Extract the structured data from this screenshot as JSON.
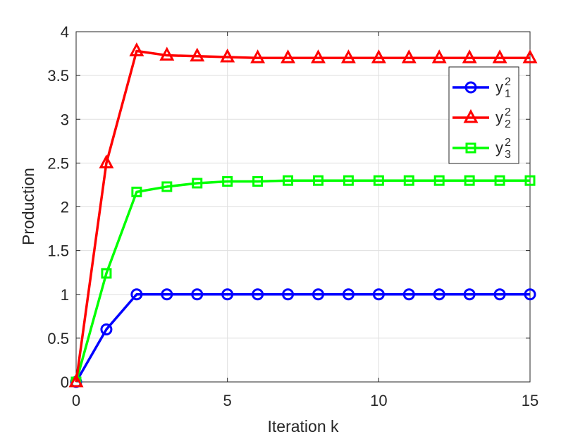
{
  "chart_data": {
    "type": "line",
    "title": "",
    "xlabel": "Iteration k",
    "ylabel": "Production",
    "xlim": [
      0,
      15
    ],
    "ylim": [
      0,
      4
    ],
    "grid": true,
    "legend_position": "top-right",
    "xticks": [
      0,
      5,
      10,
      15
    ],
    "xtick_labels": [
      "0",
      "5",
      "10",
      "15"
    ],
    "yticks": [
      0,
      0.5,
      1,
      1.5,
      2,
      2.5,
      3,
      3.5,
      4
    ],
    "ytick_labels": [
      "0",
      "0.5",
      "1",
      "1.5",
      "2",
      "2.5",
      "3",
      "3.5",
      "4"
    ],
    "x": [
      0,
      1,
      2,
      3,
      4,
      5,
      6,
      7,
      8,
      9,
      10,
      11,
      12,
      13,
      14,
      15
    ],
    "series": [
      {
        "name": "y",
        "name_sup": "2",
        "name_sub": "1",
        "color": "#0000ff",
        "marker": "circle",
        "values": [
          0,
          0.6,
          1.0,
          1.0,
          1.0,
          1.0,
          1.0,
          1.0,
          1.0,
          1.0,
          1.0,
          1.0,
          1.0,
          1.0,
          1.0,
          1.0
        ]
      },
      {
        "name": "y",
        "name_sup": "2",
        "name_sub": "2",
        "color": "#ff0000",
        "marker": "triangle",
        "values": [
          0,
          2.5,
          3.78,
          3.73,
          3.72,
          3.71,
          3.7,
          3.7,
          3.7,
          3.7,
          3.7,
          3.7,
          3.7,
          3.7,
          3.7,
          3.7
        ]
      },
      {
        "name": "y",
        "name_sup": "2",
        "name_sub": "3",
        "color": "#00ff00",
        "marker": "square",
        "values": [
          0,
          1.24,
          2.17,
          2.23,
          2.27,
          2.29,
          2.29,
          2.3,
          2.3,
          2.3,
          2.3,
          2.3,
          2.3,
          2.3,
          2.3,
          2.3
        ]
      }
    ]
  }
}
